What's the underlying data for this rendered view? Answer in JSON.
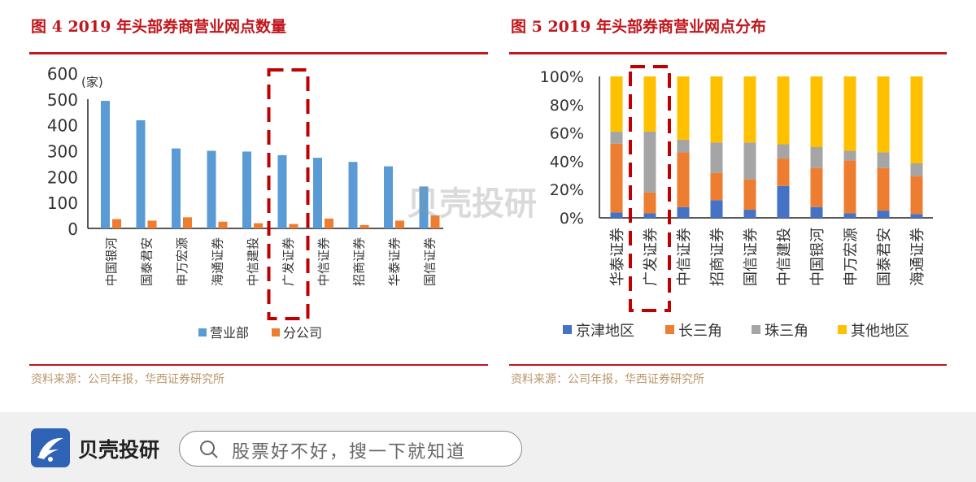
{
  "charts_header": {
    "left_title": "图 4   2019 年头部券商营业网点数量",
    "right_title": "图 5   2019 年头部券商营业网点分布",
    "left_source": "资料来源：公司年报，华西证券研究所",
    "right_source": "资料来源：公司年报，华西证券研究所"
  },
  "watermark": "贝壳投研",
  "chart_data": [
    {
      "type": "bar",
      "unit_label": "(家)",
      "categories": [
        "中国银河",
        "国泰君安",
        "申万宏源",
        "海通证券",
        "中信建投",
        "广发证券",
        "中信证券",
        "招商证券",
        "华泰证券",
        "国信证券"
      ],
      "series": [
        {
          "name": "营业部",
          "color": "#5b9bd5",
          "values": [
            493,
            418,
            309,
            300,
            297,
            283,
            273,
            257,
            240,
            162
          ]
        },
        {
          "name": "分公司",
          "color": "#ed7d31",
          "values": [
            36,
            30,
            43,
            26,
            20,
            17,
            38,
            13,
            30,
            50
          ]
        }
      ],
      "ylim": [
        0,
        600
      ],
      "yticks": [
        "0",
        "100",
        "200",
        "300",
        "400",
        "500",
        "600"
      ],
      "legend": "bottom",
      "highlight": "广发证券",
      "grid": false
    },
    {
      "type": "bar",
      "stacked": true,
      "percent": true,
      "categories": [
        "华泰证券",
        "广发证券",
        "中信证券",
        "招商证券",
        "国信证券",
        "中信建投",
        "中国银河",
        "申万宏源",
        "国泰君安",
        "海通证券"
      ],
      "series": [
        {
          "name": "京津地区",
          "color": "#4472c4",
          "values": [
            3.8,
            3.2,
            7.6,
            12.4,
            5.7,
            22.5,
            7.6,
            3.2,
            5.1,
            2.7
          ]
        },
        {
          "name": "长三角",
          "color": "#ed7d31",
          "values": [
            48.6,
            14.8,
            38.7,
            19.4,
            21.5,
            19.4,
            27.6,
            37.4,
            30.1,
            26.8
          ]
        },
        {
          "name": "珠三角",
          "color": "#a5a5a5",
          "values": [
            8.6,
            43.0,
            8.9,
            21.5,
            26.1,
            10.1,
            14.8,
            6.8,
            11.1,
            9.0
          ]
        },
        {
          "name": "其他地区",
          "color": "#ffc000",
          "values": [
            39.0,
            39.0,
            44.8,
            46.7,
            46.7,
            48.0,
            50.0,
            52.6,
            53.7,
            61.5
          ]
        }
      ],
      "ylim": [
        0,
        100
      ],
      "yticks": [
        "0%",
        "20%",
        "40%",
        "60%",
        "80%",
        "100%"
      ],
      "legend": "bottom",
      "highlight": "广发证券",
      "grid": false
    }
  ],
  "bottom_bar": {
    "brand": "贝壳投研",
    "search_placeholder": "股票好不好，搜一下就知道"
  }
}
